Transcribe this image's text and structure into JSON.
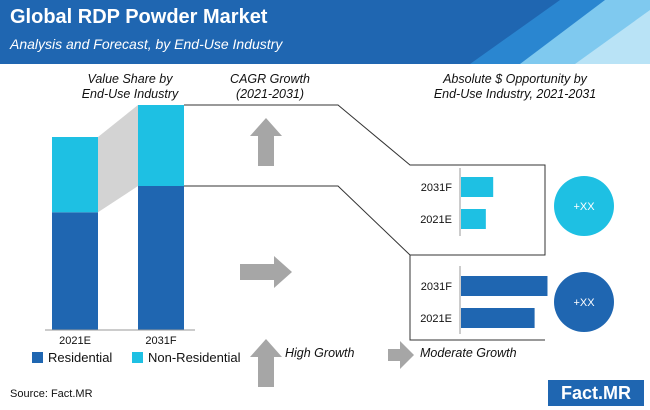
{
  "header": {
    "title": "Global RDP Powder Market",
    "subtitle": "Analysis and Forecast, by End-Use Industry"
  },
  "columns": {
    "value_share": "Value Share by\nEnd-Use Industry",
    "cagr": "CAGR Growth\n(2021-2031)",
    "opportunity": "Absolute $ Opportunity by\nEnd-Use Industry, 2021-2031"
  },
  "legend": {
    "residential": "Residential",
    "non_residential": "Non-Residential"
  },
  "growth_legend": {
    "high": "High Growth",
    "moderate": "Moderate Growth"
  },
  "footer": {
    "source": "Source: Fact.MR",
    "logo": "Fact.MR"
  },
  "colors": {
    "dark_blue": "#1f66b1",
    "light_blue": "#1ec0e3",
    "grey": "#a6a6a6",
    "connector": "#d3d3d3"
  },
  "chart_data": [
    {
      "type": "bar",
      "stacked": true,
      "categories": [
        "2021E",
        "2031F"
      ],
      "series": [
        {
          "name": "Residential",
          "values": [
            61,
            64
          ]
        },
        {
          "name": "Non-Residential",
          "values": [
            39,
            36
          ]
        }
      ],
      "ylim": [
        0,
        100
      ]
    },
    {
      "type": "bar",
      "orientation": "horizontal",
      "segment": "Non-Residential",
      "categories": [
        "2031F",
        "2021E"
      ],
      "values": [
        35,
        27
      ],
      "xlim": [
        0,
        100
      ],
      "badge": "+XX"
    },
    {
      "type": "bar",
      "orientation": "horizontal",
      "segment": "Residential",
      "categories": [
        "2031F",
        "2021E"
      ],
      "values": [
        94,
        80
      ],
      "xlim": [
        0,
        100
      ],
      "badge": "+XX"
    }
  ]
}
